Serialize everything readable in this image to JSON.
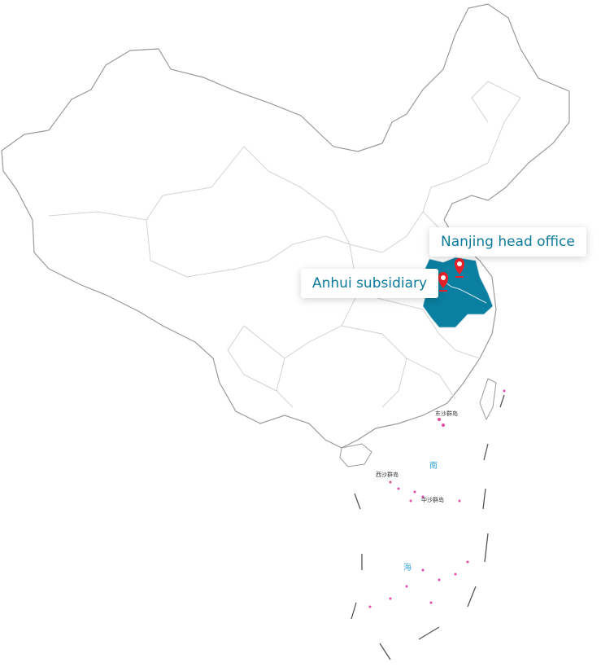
{
  "map": {
    "highlight_color": "#0b7fa0",
    "marker_color": "#e8202a",
    "border_color": "#c8c8c8",
    "markers": [
      {
        "label": "Nanjing head office",
        "icon": "map-pin-icon"
      },
      {
        "label": "Anhui subsidiary",
        "icon": "map-pin-icon"
      }
    ],
    "inset_labels": {
      "dongsha": "东沙群岛",
      "xisha": "西沙群岛",
      "zhongsha": "中沙群岛",
      "sea_south": "南",
      "sea_hai": "海"
    }
  }
}
